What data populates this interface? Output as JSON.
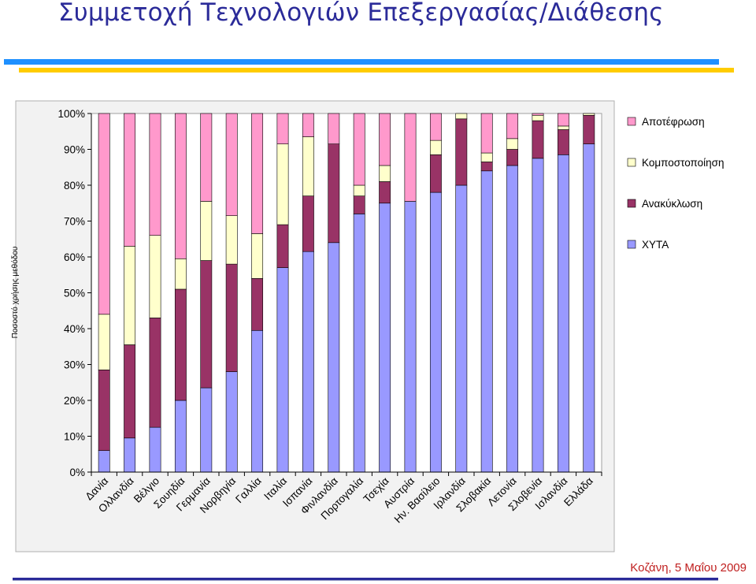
{
  "slide": {
    "title": "Συμμετοχή Τεχνολογιών Επεξεργασίας/Διάθεσης",
    "footer": "Κοζάνη, 5 Μαΐου 2009"
  },
  "colors": {
    "title": "#2b2b99",
    "rule_blue": "#1e90ff",
    "rule_yellow": "#ffcc00",
    "footer_text": "#c02020",
    "plot_background": "#ffffff"
  },
  "chart_data": {
    "type": "bar",
    "stacked": true,
    "percent_stacked": true,
    "ylabel": "Ποσοστό χρήσης μεθόδου",
    "ylim": [
      0,
      100
    ],
    "yticks": [
      "0%",
      "10%",
      "20%",
      "30%",
      "40%",
      "50%",
      "60%",
      "70%",
      "80%",
      "90%",
      "100%"
    ],
    "grid": false,
    "legend_position": "right",
    "categories": [
      "Δανία",
      "Ολλανδία",
      "Βέλγιο",
      "Σουηδία",
      "Γερμανία",
      "Νορβηγία",
      "Γαλλία",
      "Ιταλία",
      "Ισπανία",
      "Φινλανδία",
      "Πορτογαλία",
      "Τσεχία",
      "Αυστρία",
      "Ην. Βασίλειο",
      "Ιρλανδία",
      "Σλοβακία",
      "Λετονία",
      "Σλοβενία",
      "Ισλανδία",
      "Ελλάδα"
    ],
    "series": [
      {
        "name": "ΧΥΤΑ",
        "color": "#9999ff",
        "values": [
          6,
          9.5,
          12.5,
          20,
          23.5,
          28,
          39.5,
          57,
          61.5,
          64,
          72,
          75,
          75.5,
          78,
          80,
          84,
          85.5,
          87.5,
          88.5,
          91.5
        ]
      },
      {
        "name": "Ανακύκλωση",
        "color": "#993366",
        "values": [
          22.5,
          26,
          30.5,
          31,
          35.5,
          30,
          14.5,
          12,
          15.5,
          27.5,
          5,
          6,
          0,
          10.5,
          18.5,
          2.5,
          4.5,
          10.5,
          7,
          8
        ]
      },
      {
        "name": "Κομποστοποίηση",
        "color": "#ffffcc",
        "values": [
          15.5,
          27.5,
          23,
          8.5,
          16.5,
          13.5,
          12.5,
          22.5,
          16.5,
          0,
          3,
          4.5,
          0,
          4,
          1.5,
          2.5,
          3,
          1.5,
          1,
          0.5
        ]
      },
      {
        "name": "Αποτέφρωση",
        "color": "#ff99cc",
        "values": [
          56,
          37,
          34,
          40.5,
          24.5,
          28.5,
          33.5,
          8.5,
          6.5,
          8.5,
          20,
          14.5,
          24.5,
          7.5,
          0,
          11,
          7,
          0.5,
          3.5,
          0
        ]
      }
    ],
    "legend": [
      "Αποτέφρωση",
      "Κομποστοποίηση",
      "Ανακύκλωση",
      "ΧΥΤΑ"
    ]
  }
}
